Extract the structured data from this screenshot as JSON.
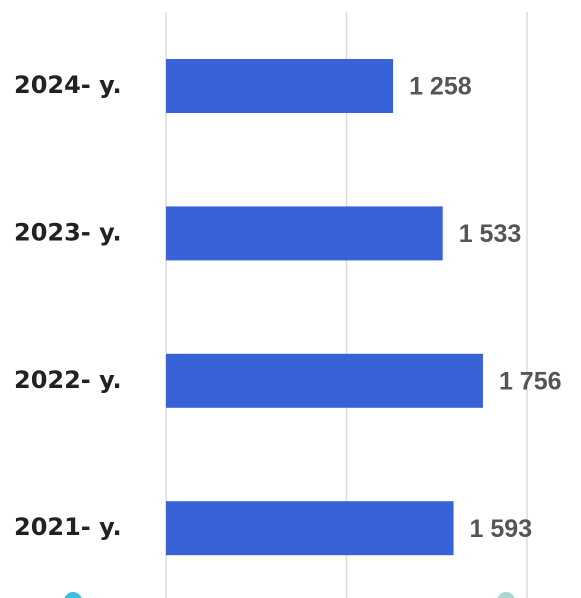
{
  "chart_data": {
    "type": "bar",
    "orientation": "horizontal",
    "categories": [
      "2024- y.",
      "2023- y.",
      "2022- y.",
      "2021- y."
    ],
    "values": [
      1258,
      1533,
      1756,
      1593
    ],
    "value_labels": [
      "1 258",
      "1 533",
      "1 756",
      "1 593"
    ],
    "color": "#3a62d7",
    "xlim": [
      0,
      2000
    ],
    "xticks": [
      0,
      1000,
      2000
    ],
    "grid": true
  }
}
